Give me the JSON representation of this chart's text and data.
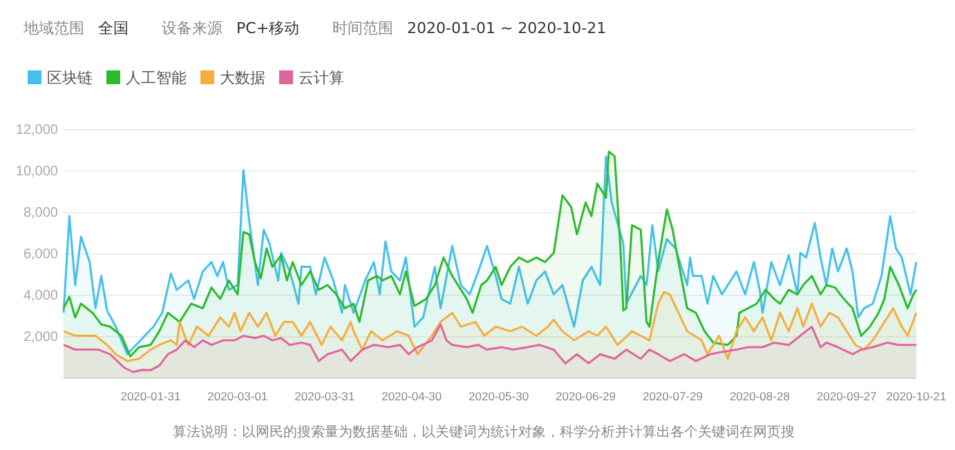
{
  "chart_data": {
    "type": "area",
    "annotations": [
      "地域范围",
      "全国",
      "设备来源",
      "PC+移动",
      "时间范围",
      "2020-01-01 ~ 2020-10-21",
      "算法说明：以网民的搜索量为数据基础，以关键词为统计对象，科学分析并计算出各个关键词在网页搜"
    ],
    "xlim": [
      "2020-01-01",
      "2020-10-21"
    ],
    "xticks": [
      {
        "value": "2020-01-31",
        "label": "2020-01-31"
      },
      {
        "value": "2020-03-01",
        "label": "2020-03-01"
      },
      {
        "value": "2020-03-31",
        "label": "2020-03-31"
      },
      {
        "value": "2020-04-30",
        "label": "2020-04-30"
      },
      {
        "value": "2020-05-30",
        "label": "2020-05-30"
      },
      {
        "value": "2020-06-29",
        "label": "2020-06-29"
      },
      {
        "value": "2020-07-29",
        "label": "2020-07-29"
      },
      {
        "value": "2020-08-28",
        "label": "2020-08-28"
      },
      {
        "value": "2020-09-27",
        "label": "2020-09-27"
      },
      {
        "value": "2020-10-21",
        "label": "2020-10-21"
      }
    ],
    "ylim": [
      0,
      12000
    ],
    "yticks": [
      {
        "value": 2000,
        "label": "2,000"
      },
      {
        "value": 4000,
        "label": "4,000"
      },
      {
        "value": 6000,
        "label": "6,000"
      },
      {
        "value": 8000,
        "label": "8,000"
      },
      {
        "value": 10000,
        "label": "10,000"
      },
      {
        "value": 12000,
        "label": "12,000"
      }
    ],
    "grid": "y",
    "legend": "top left",
    "series": [
      {
        "name": "区块链",
        "color": "#45c0ec",
        "x": [
          "2020-01-01",
          "2020-01-03",
          "2020-01-05",
          "2020-01-07",
          "2020-01-10",
          "2020-01-12",
          "2020-01-14",
          "2020-01-16",
          "2020-01-19",
          "2020-01-23",
          "2020-01-26",
          "2020-02-01",
          "2020-02-04",
          "2020-02-07",
          "2020-02-09",
          "2020-02-13",
          "2020-02-15",
          "2020-02-18",
          "2020-02-21",
          "2020-02-23",
          "2020-02-25",
          "2020-02-27",
          "2020-03-01",
          "2020-03-03",
          "2020-03-05",
          "2020-03-08",
          "2020-03-10",
          "2020-03-12",
          "2020-03-15",
          "2020-03-16",
          "2020-03-19",
          "2020-03-22",
          "2020-03-23",
          "2020-03-26",
          "2020-03-28",
          "2020-03-31",
          "2020-04-03",
          "2020-04-06",
          "2020-04-07",
          "2020-04-10",
          "2020-04-14",
          "2020-04-17",
          "2020-04-19",
          "2020-04-21",
          "2020-04-23",
          "2020-04-26",
          "2020-04-28",
          "2020-05-01",
          "2020-05-04",
          "2020-05-08",
          "2020-05-10",
          "2020-05-14",
          "2020-05-17",
          "2020-05-20",
          "2020-05-23",
          "2020-05-26",
          "2020-05-29",
          "2020-05-31",
          "2020-06-03",
          "2020-06-06",
          "2020-06-09",
          "2020-06-12",
          "2020-06-15",
          "2020-06-18",
          "2020-06-21",
          "2020-06-25",
          "2020-06-28",
          "2020-07-01",
          "2020-07-04",
          "2020-07-06",
          "2020-07-08",
          "2020-07-12",
          "2020-07-13",
          "2020-07-18",
          "2020-07-20",
          "2020-07-22",
          "2020-07-24",
          "2020-07-27",
          "2020-07-30",
          "2020-08-03",
          "2020-08-04",
          "2020-08-05",
          "2020-08-08",
          "2020-08-10",
          "2020-08-12",
          "2020-08-15",
          "2020-08-17",
          "2020-08-20",
          "2020-08-23",
          "2020-08-26",
          "2020-08-28",
          "2020-08-29",
          "2020-09-01",
          "2020-09-04",
          "2020-09-07",
          "2020-09-10",
          "2020-09-11",
          "2020-09-13",
          "2020-09-16",
          "2020-09-18",
          "2020-09-20",
          "2020-09-22",
          "2020-09-24",
          "2020-09-27",
          "2020-09-29",
          "2020-10-01",
          "2020-10-03",
          "2020-10-06",
          "2020-10-09",
          "2020-10-12",
          "2020-10-14",
          "2020-10-16",
          "2020-10-19",
          "2020-10-21"
        ],
        "values": [
          3160,
          7830,
          4500,
          6830,
          5610,
          3380,
          4940,
          3270,
          2490,
          1160,
          1610,
          2490,
          3160,
          5050,
          4270,
          4720,
          3830,
          5160,
          5610,
          4940,
          5610,
          4270,
          4500,
          10050,
          7600,
          4500,
          7170,
          6500,
          4720,
          6050,
          5160,
          3600,
          5380,
          5380,
          4050,
          5830,
          4720,
          3160,
          4500,
          3160,
          4720,
          5610,
          4050,
          6610,
          5160,
          4720,
          5830,
          2490,
          2940,
          5380,
          3380,
          6390,
          4500,
          4050,
          5160,
          6390,
          4940,
          3830,
          3600,
          5380,
          3600,
          4720,
          5160,
          4050,
          4500,
          2490,
          4720,
          5380,
          4500,
          10720,
          8490,
          6500,
          3600,
          4940,
          4500,
          7390,
          5160,
          6720,
          6270,
          4500,
          5830,
          4940,
          4940,
          3600,
          4940,
          4050,
          4500,
          5160,
          4050,
          5610,
          4270,
          3160,
          5610,
          4500,
          5940,
          4050,
          6050,
          5830,
          7500,
          5830,
          4500,
          6270,
          5160,
          6270,
          5160,
          2940,
          3380,
          3600,
          4940,
          7830,
          6270,
          5830,
          4050,
          5610
        ]
      },
      {
        "name": "人工智能",
        "color": "#2cbb2c",
        "x": [
          "2020-01-01",
          "2020-01-03",
          "2020-01-05",
          "2020-01-07",
          "2020-01-11",
          "2020-01-14",
          "2020-01-17",
          "2020-01-21",
          "2020-01-24",
          "2020-01-27",
          "2020-01-31",
          "2020-02-03",
          "2020-02-06",
          "2020-02-10",
          "2020-02-14",
          "2020-02-18",
          "2020-02-21",
          "2020-02-24",
          "2020-02-27",
          "2020-03-01",
          "2020-03-03",
          "2020-03-05",
          "2020-03-07",
          "2020-03-09",
          "2020-03-11",
          "2020-03-13",
          "2020-03-16",
          "2020-03-18",
          "2020-03-20",
          "2020-03-23",
          "2020-03-26",
          "2020-03-29",
          "2020-04-01",
          "2020-04-04",
          "2020-04-07",
          "2020-04-10",
          "2020-04-12",
          "2020-04-15",
          "2020-04-18",
          "2020-04-20",
          "2020-04-23",
          "2020-04-26",
          "2020-04-28",
          "2020-05-01",
          "2020-05-05",
          "2020-05-08",
          "2020-05-11",
          "2020-05-14",
          "2020-05-16",
          "2020-05-19",
          "2020-05-21",
          "2020-05-24",
          "2020-05-26",
          "2020-05-29",
          "2020-05-31",
          "2020-06-03",
          "2020-06-06",
          "2020-06-09",
          "2020-06-12",
          "2020-06-15",
          "2020-06-18",
          "2020-06-21",
          "2020-06-24",
          "2020-06-26",
          "2020-06-29",
          "2020-07-01",
          "2020-07-03",
          "2020-07-06",
          "2020-07-07",
          "2020-07-09",
          "2020-07-11",
          "2020-07-12",
          "2020-07-13",
          "2020-07-15",
          "2020-07-18",
          "2020-07-20",
          "2020-07-21",
          "2020-07-24",
          "2020-07-27",
          "2020-07-29",
          "2020-07-31",
          "2020-08-03",
          "2020-08-06",
          "2020-08-09",
          "2020-08-12",
          "2020-08-17",
          "2020-08-20",
          "2020-08-21",
          "2020-08-24",
          "2020-08-27",
          "2020-08-30",
          "2020-09-02",
          "2020-09-04",
          "2020-09-07",
          "2020-09-10",
          "2020-09-12",
          "2020-09-15",
          "2020-09-18",
          "2020-09-20",
          "2020-09-23",
          "2020-09-26",
          "2020-09-29",
          "2020-10-02",
          "2020-10-05",
          "2020-10-08",
          "2020-10-10",
          "2020-10-12",
          "2020-10-15",
          "2020-10-18",
          "2020-10-20",
          "2020-10-21"
        ],
        "values": [
          3380,
          3940,
          2940,
          3600,
          3160,
          2600,
          2490,
          2050,
          1050,
          1500,
          1610,
          2270,
          3160,
          2720,
          3600,
          3380,
          4380,
          3830,
          4720,
          4050,
          7060,
          6950,
          5610,
          4830,
          6270,
          5380,
          5940,
          4720,
          5610,
          4500,
          5160,
          4270,
          4500,
          4050,
          3380,
          3600,
          2720,
          4720,
          4940,
          4720,
          4940,
          4050,
          5160,
          3490,
          3830,
          4500,
          5830,
          4940,
          4500,
          3830,
          3160,
          4500,
          4720,
          5380,
          4500,
          5380,
          5830,
          5610,
          5830,
          5610,
          6050,
          8830,
          8270,
          6950,
          8490,
          7830,
          9400,
          8720,
          10940,
          10720,
          6270,
          3270,
          3380,
          7390,
          7170,
          2720,
          2490,
          5610,
          8160,
          7170,
          5610,
          3380,
          3160,
          2270,
          1720,
          1610,
          2050,
          3160,
          3380,
          3600,
          4270,
          3830,
          3600,
          4270,
          4050,
          4500,
          4940,
          4050,
          4500,
          4380,
          3830,
          3380,
          2050,
          2490,
          3160,
          3830,
          5380,
          4500,
          3380,
          4050,
          4270
        ]
      },
      {
        "name": "大数据",
        "color": "#f5ad3f",
        "x": [
          "2020-01-01",
          "2020-01-05",
          "2020-01-08",
          "2020-01-12",
          "2020-01-16",
          "2020-01-19",
          "2020-01-23",
          "2020-01-27",
          "2020-01-31",
          "2020-02-03",
          "2020-02-07",
          "2020-02-09",
          "2020-02-10",
          "2020-02-13",
          "2020-02-16",
          "2020-02-20",
          "2020-02-24",
          "2020-02-27",
          "2020-02-29",
          "2020-03-02",
          "2020-03-05",
          "2020-03-08",
          "2020-03-11",
          "2020-03-14",
          "2020-03-17",
          "2020-03-20",
          "2020-03-23",
          "2020-03-26",
          "2020-03-30",
          "2020-04-02",
          "2020-04-06",
          "2020-04-09",
          "2020-04-10",
          "2020-04-13",
          "2020-04-16",
          "2020-04-20",
          "2020-04-25",
          "2020-04-29",
          "2020-05-02",
          "2020-05-07",
          "2020-05-10",
          "2020-05-14",
          "2020-05-17",
          "2020-05-22",
          "2020-05-25",
          "2020-05-29",
          "2020-06-03",
          "2020-06-07",
          "2020-06-12",
          "2020-06-16",
          "2020-06-18",
          "2020-06-21",
          "2020-06-25",
          "2020-06-30",
          "2020-07-03",
          "2020-07-06",
          "2020-07-10",
          "2020-07-15",
          "2020-07-18",
          "2020-07-21",
          "2020-07-24",
          "2020-07-26",
          "2020-07-28",
          "2020-07-31",
          "2020-08-03",
          "2020-08-08",
          "2020-08-10",
          "2020-08-14",
          "2020-08-17",
          "2020-08-20",
          "2020-08-23",
          "2020-08-26",
          "2020-08-29",
          "2020-09-01",
          "2020-09-04",
          "2020-09-07",
          "2020-09-10",
          "2020-09-12",
          "2020-09-15",
          "2020-09-18",
          "2020-09-21",
          "2020-09-24",
          "2020-09-27",
          "2020-09-30",
          "2020-10-03",
          "2020-10-06",
          "2020-10-09",
          "2020-10-13",
          "2020-10-16",
          "2020-10-18",
          "2020-10-21"
        ],
        "values": [
          2270,
          2050,
          2050,
          2050,
          1610,
          1160,
          830,
          940,
          1380,
          1610,
          1830,
          1610,
          2720,
          1610,
          2490,
          2050,
          2940,
          2490,
          3160,
          2270,
          3160,
          2490,
          3160,
          2050,
          2720,
          2720,
          2050,
          2720,
          1610,
          2490,
          1830,
          2720,
          2270,
          1380,
          2270,
          1830,
          2270,
          2050,
          1160,
          2050,
          2720,
          3160,
          2490,
          2720,
          2050,
          2490,
          2270,
          2490,
          2050,
          2490,
          2830,
          2270,
          1830,
          2270,
          2050,
          2490,
          1610,
          2270,
          2050,
          1830,
          3600,
          4160,
          4050,
          3160,
          2270,
          1830,
          1160,
          2050,
          940,
          2270,
          2940,
          2270,
          2940,
          1830,
          3160,
          2270,
          3380,
          2490,
          3600,
          2490,
          3160,
          2940,
          2270,
          1610,
          1380,
          1830,
          2490,
          3380,
          2490,
          2050,
          3160
        ]
      },
      {
        "name": "云计算",
        "color": "#e2649c",
        "x": [
          "2020-01-01",
          "2020-01-05",
          "2020-01-08",
          "2020-01-13",
          "2020-01-17",
          "2020-01-22",
          "2020-01-25",
          "2020-01-28",
          "2020-01-31",
          "2020-02-03",
          "2020-02-06",
          "2020-02-09",
          "2020-02-12",
          "2020-02-15",
          "2020-02-18",
          "2020-02-21",
          "2020-02-25",
          "2020-02-29",
          "2020-03-03",
          "2020-03-07",
          "2020-03-10",
          "2020-03-13",
          "2020-03-16",
          "2020-03-19",
          "2020-03-23",
          "2020-03-26",
          "2020-03-29",
          "2020-04-01",
          "2020-04-06",
          "2020-04-09",
          "2020-04-13",
          "2020-04-17",
          "2020-04-22",
          "2020-04-26",
          "2020-04-29",
          "2020-05-02",
          "2020-05-07",
          "2020-05-10",
          "2020-05-12",
          "2020-05-14",
          "2020-05-19",
          "2020-05-23",
          "2020-05-26",
          "2020-05-31",
          "2020-06-04",
          "2020-06-09",
          "2020-06-13",
          "2020-06-18",
          "2020-06-22",
          "2020-06-26",
          "2020-06-30",
          "2020-07-04",
          "2020-07-09",
          "2020-07-13",
          "2020-07-18",
          "2020-07-21",
          "2020-07-24",
          "2020-07-28",
          "2020-08-02",
          "2020-08-06",
          "2020-08-11",
          "2020-08-15",
          "2020-08-20",
          "2020-08-24",
          "2020-08-29",
          "2020-09-02",
          "2020-09-07",
          "2020-09-11",
          "2020-09-15",
          "2020-09-18",
          "2020-09-20",
          "2020-09-24",
          "2020-09-29",
          "2020-10-02",
          "2020-10-06",
          "2020-10-11",
          "2020-10-15",
          "2020-10-20",
          "2020-10-21"
        ],
        "values": [
          1610,
          1380,
          1380,
          1380,
          1160,
          500,
          300,
          400,
          390,
          610,
          1160,
          1380,
          1830,
          1500,
          1830,
          1610,
          1830,
          1830,
          2050,
          1940,
          2050,
          1830,
          1940,
          1610,
          1720,
          1610,
          830,
          1160,
          1380,
          830,
          1380,
          1610,
          1500,
          1610,
          1160,
          1500,
          1830,
          2600,
          1830,
          1610,
          1500,
          1610,
          1380,
          1500,
          1380,
          1500,
          1610,
          1380,
          720,
          1160,
          720,
          1160,
          940,
          1380,
          940,
          1380,
          1160,
          830,
          1160,
          830,
          1160,
          1270,
          1380,
          1500,
          1500,
          1720,
          1610,
          2050,
          2490,
          1500,
          1720,
          1500,
          1160,
          1380,
          1500,
          1720,
          1610,
          1610,
          1610
        ]
      }
    ]
  }
}
